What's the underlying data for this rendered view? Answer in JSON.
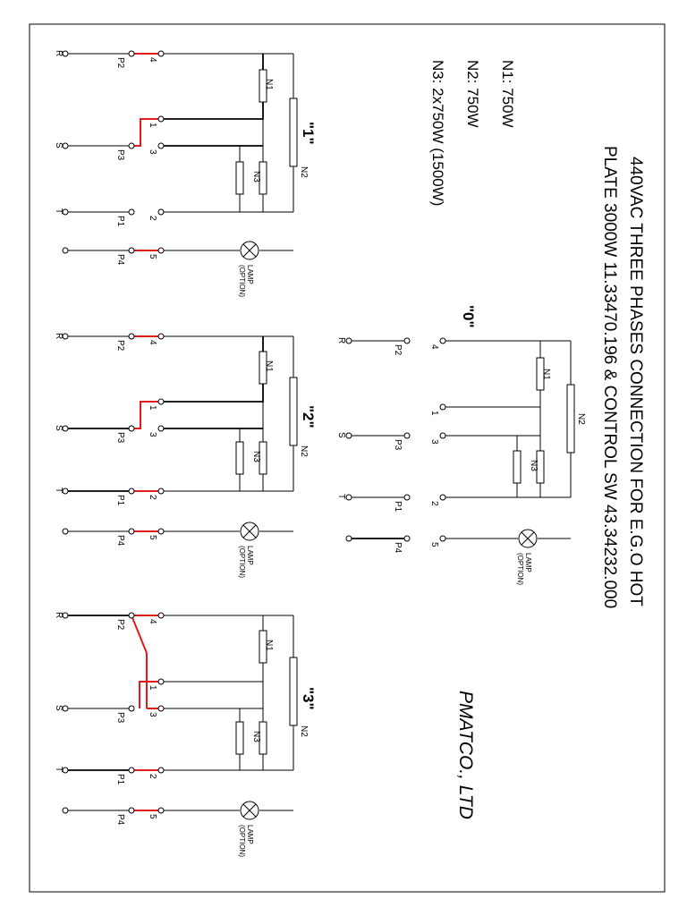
{
  "title": {
    "line1": "440VAC THREE PHASES CONNECTION FOR E.G.O HOT",
    "line2": "PLATE 3000W  11.33470.196 & CONTROL SW  43.34232.000"
  },
  "specs": {
    "n1": "N1: 750W",
    "n2": "N2: 750W",
    "n3": "N3: 2x750W (1500W)"
  },
  "company": "PMATCO., LTD",
  "labels": {
    "R": "R",
    "S": "S",
    "T": "T",
    "P1": "P1",
    "P2": "P2",
    "P3": "P3",
    "P4": "P4",
    "t1": "1",
    "t2": "2",
    "t3": "3",
    "t4": "4",
    "t5": "5",
    "N1": "N1",
    "N2": "N2",
    "N3": "N3",
    "lamp": "LAMP",
    "option": "(OPTION)"
  },
  "positions": [
    {
      "id": "0",
      "label": "\"0\""
    },
    {
      "id": "1",
      "label": "\"1\""
    },
    {
      "id": "2",
      "label": "\"2\""
    },
    {
      "id": "3",
      "label": "\"3\""
    }
  ],
  "colors": {
    "wire": "#000000",
    "jumper": "#e21b1b",
    "frame": "#000000",
    "background": "#ffffff"
  }
}
